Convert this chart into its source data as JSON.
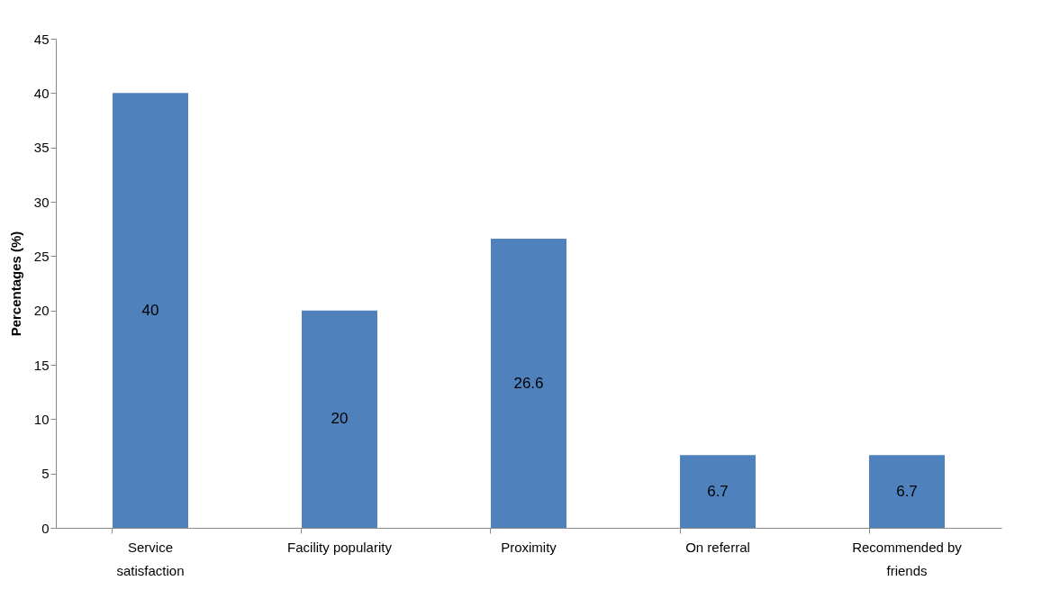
{
  "chart_data": {
    "type": "bar",
    "ylabel": "Percentages (%)",
    "categories": [
      "Service satisfaction",
      "Facility popularity",
      "Proximity",
      "On referral",
      "Recommended by friends"
    ],
    "values": [
      40,
      20,
      26.6,
      6.7,
      6.7
    ],
    "color": "#4f81bd",
    "data_labels": true,
    "ylim": [
      0,
      45
    ],
    "yticks": [
      0,
      5,
      10,
      15,
      20,
      25,
      30,
      35,
      40,
      45
    ],
    "grid": false
  }
}
